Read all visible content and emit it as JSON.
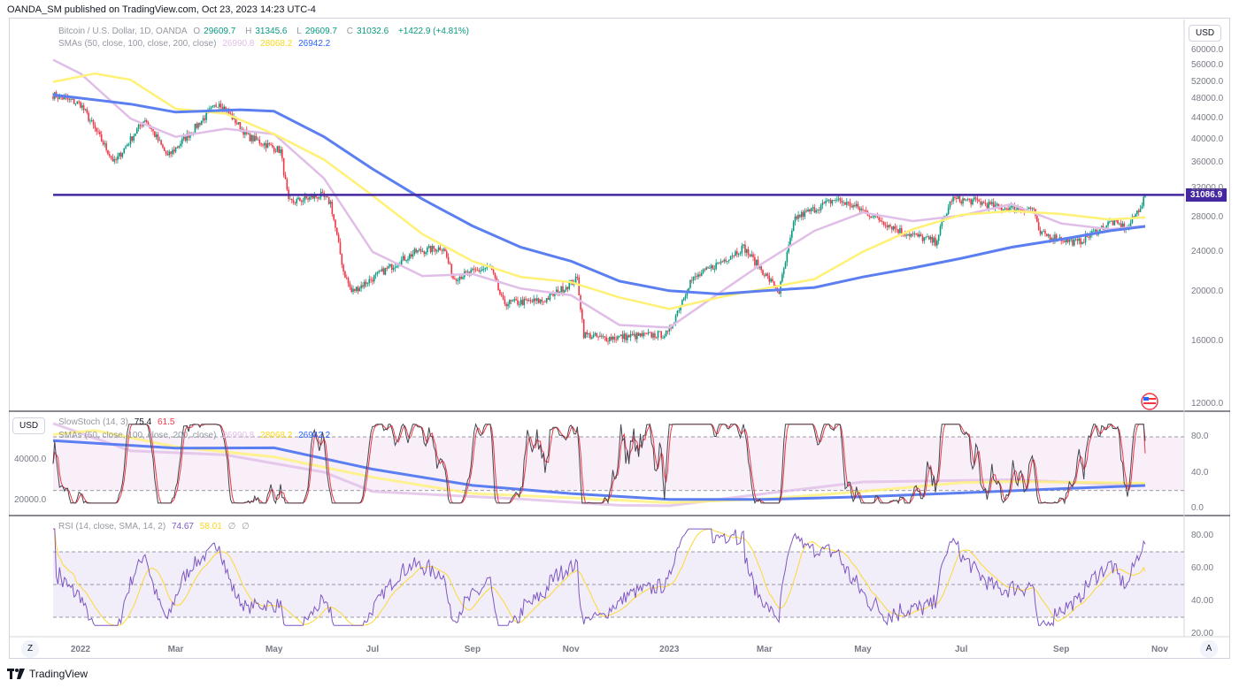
{
  "header": {
    "publisher_line": "OANDA_SM published on TradingView.com, Oct 23, 2023 14:23 UTC-4"
  },
  "main_legend": {
    "title": "Bitcoin / U.S. Dollar, 1D, OANDA",
    "o_label": "O",
    "o": "29609.7",
    "h_label": "H",
    "h": "31345.6",
    "l_label": "L",
    "l": "29609.7",
    "c_label": "C",
    "c": "31032.6",
    "change": "+1422.9 (+4.81%)",
    "sma_title": "SMAs (50, close, 100, close, 200, close)",
    "sma50": "26990.8",
    "sma100": "28068.2",
    "sma200": "26942.2"
  },
  "stoch_legend": {
    "title": "SlowStoch (14, 3)",
    "k": "75.4",
    "d": "61.5"
  },
  "stoch_overlay_legend": {
    "title": "SMAs (50, close, 100, close, 200, close)",
    "sma50": "26990.8",
    "sma100": "28068.2",
    "sma200": "26942.2"
  },
  "rsi_legend": {
    "title": "RSI (14, close, SMA, 14, 2)",
    "rsi": "74.67",
    "ma": "58.01",
    "ph1": "∅",
    "ph2": "∅"
  },
  "currency_button": "USD",
  "currency_label_left": "USD",
  "price_label": "31086.9",
  "footer": {
    "brand": "TradingView"
  },
  "buttons": {
    "zoom": "Z",
    "auto": "A"
  },
  "colors": {
    "up": "#089981",
    "down": "#f23645",
    "sma50": "#e1bee7",
    "sma100": "#fff176",
    "sma200": "#5b7ff0",
    "level": "#4527a0",
    "stoch_k": "#434651",
    "stoch_d": "#f23645",
    "rsi": "#7e57c2",
    "rsi_ma": "#fdd835"
  },
  "chart_data": [
    {
      "type": "candlestick",
      "title": "Bitcoin / U.S. Dollar, 1D, OANDA",
      "x_ticks": [
        "2022",
        "Mar",
        "May",
        "Jul",
        "Sep",
        "Nov",
        "2023",
        "Mar",
        "May",
        "Jul",
        "Sep",
        "Nov"
      ],
      "y_ticks": [
        "60000.0",
        "56000.0",
        "52000.0",
        "48000.0",
        "44000.0",
        "40000.0",
        "36000.0",
        "32000.0",
        "28000.0",
        "24000.0",
        "20000.0",
        "16000.0",
        "12000.0"
      ],
      "y_scale": "log",
      "ylim": [
        12000,
        60000
      ],
      "horizontal_level": 31086.9,
      "price_anchors": [
        [
          "2021-12-15",
          49000
        ],
        [
          "2022-01-01",
          47000
        ],
        [
          "2022-01-22",
          36000
        ],
        [
          "2022-02-10",
          44000
        ],
        [
          "2022-02-24",
          37000
        ],
        [
          "2022-03-28",
          47500
        ],
        [
          "2022-04-15",
          40500
        ],
        [
          "2022-05-05",
          38000
        ],
        [
          "2022-05-10",
          30000
        ],
        [
          "2022-05-30",
          31000
        ],
        [
          "2022-06-05",
          30000
        ],
        [
          "2022-06-13",
          22000
        ],
        [
          "2022-06-18",
          20000
        ],
        [
          "2022-07-08",
          22000
        ],
        [
          "2022-07-28",
          24000
        ],
        [
          "2022-08-14",
          24500
        ],
        [
          "2022-08-20",
          21300
        ],
        [
          "2022-09-12",
          22400
        ],
        [
          "2022-09-20",
          19000
        ],
        [
          "2022-10-15",
          19200
        ],
        [
          "2022-11-05",
          21200
        ],
        [
          "2022-11-09",
          16500
        ],
        [
          "2022-11-20",
          16200
        ],
        [
          "2022-12-31",
          16500
        ],
        [
          "2023-01-14",
          21000
        ],
        [
          "2023-02-16",
          24500
        ],
        [
          "2023-03-10",
          20000
        ],
        [
          "2023-03-20",
          28000
        ],
        [
          "2023-04-14",
          30500
        ],
        [
          "2023-04-28",
          29300
        ],
        [
          "2023-05-25",
          26300
        ],
        [
          "2023-06-15",
          25100
        ],
        [
          "2023-06-25",
          30500
        ],
        [
          "2023-07-10",
          30200
        ],
        [
          "2023-07-25",
          29300
        ],
        [
          "2023-08-15",
          29200
        ],
        [
          "2023-08-18",
          26100
        ],
        [
          "2023-09-11",
          25000
        ],
        [
          "2023-10-02",
          27500
        ],
        [
          "2023-10-12",
          26700
        ],
        [
          "2023-10-21",
          29900
        ],
        [
          "2023-10-23",
          31032.6
        ]
      ],
      "series": [
        {
          "name": "SMA 50",
          "value_last": 26990.8
        },
        {
          "name": "SMA 100",
          "value_last": 28068.2
        },
        {
          "name": "SMA 200",
          "value_last": 26942.2
        }
      ]
    },
    {
      "type": "line",
      "title": "SlowStoch (14, 3)",
      "y_ticks": [
        "80.0",
        "40.0",
        "0.0"
      ],
      "ylim": [
        0,
        100
      ],
      "bands": [
        20,
        80
      ],
      "series": [
        {
          "name": "%K",
          "value_last": 75.4
        },
        {
          "name": "%D",
          "value_last": 61.5
        }
      ]
    },
    {
      "type": "line",
      "title": "RSI (14, close, SMA, 14, 2)",
      "y_ticks": [
        "80.00",
        "60.00",
        "40.00",
        "20.00"
      ],
      "ylim": [
        20,
        85
      ],
      "bands": [
        30,
        50,
        70
      ],
      "series": [
        {
          "name": "RSI",
          "value_last": 74.67
        },
        {
          "name": "RSI-based MA",
          "value_last": 58.01
        }
      ]
    }
  ],
  "stoch_left_ticks": [
    "40000.0",
    "20000.0"
  ]
}
